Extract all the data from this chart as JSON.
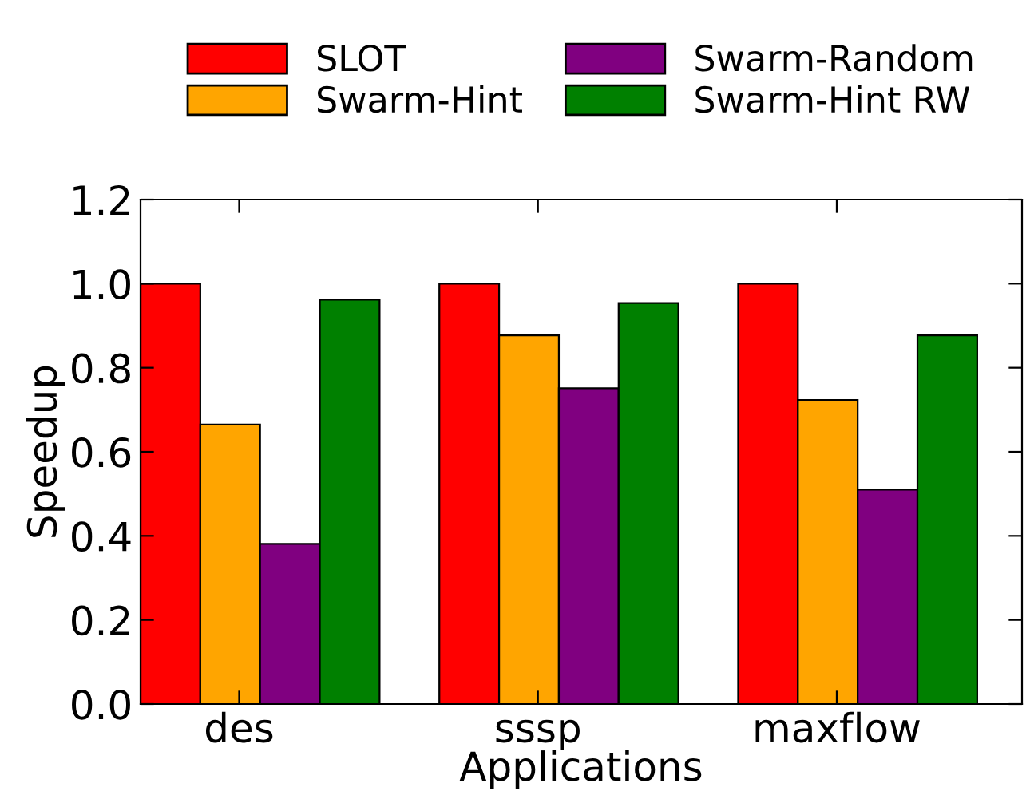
{
  "chart_data": {
    "type": "bar",
    "xlabel": "Applications",
    "ylabel": "Speedup",
    "categories": [
      "des",
      "sssp",
      "maxflow"
    ],
    "series": [
      {
        "name": "SLOT",
        "color": "#ff0000",
        "values": [
          1.0,
          1.0,
          1.0
        ]
      },
      {
        "name": "Swarm-Hint",
        "color": "#ffa500",
        "values": [
          0.665,
          0.877,
          0.723
        ]
      },
      {
        "name": "Swarm-Random",
        "color": "#800080",
        "values": [
          0.381,
          0.751,
          0.51
        ]
      },
      {
        "name": "Swarm-Hint RW",
        "color": "#008000",
        "values": [
          0.962,
          0.954,
          0.877
        ]
      }
    ],
    "ylim": [
      0,
      1.2
    ],
    "yticks": [
      {
        "value": 0,
        "label": "0.0"
      },
      {
        "value": 0.2,
        "label": "0.2"
      },
      {
        "value": 0.4,
        "label": "0.4"
      },
      {
        "value": 0.6,
        "label": "0.6"
      },
      {
        "value": 0.8,
        "label": "0.8"
      },
      {
        "value": 1.0,
        "label": "1.0"
      },
      {
        "value": 1.2,
        "label": "1.2"
      }
    ],
    "grid": false,
    "legend": "top"
  }
}
